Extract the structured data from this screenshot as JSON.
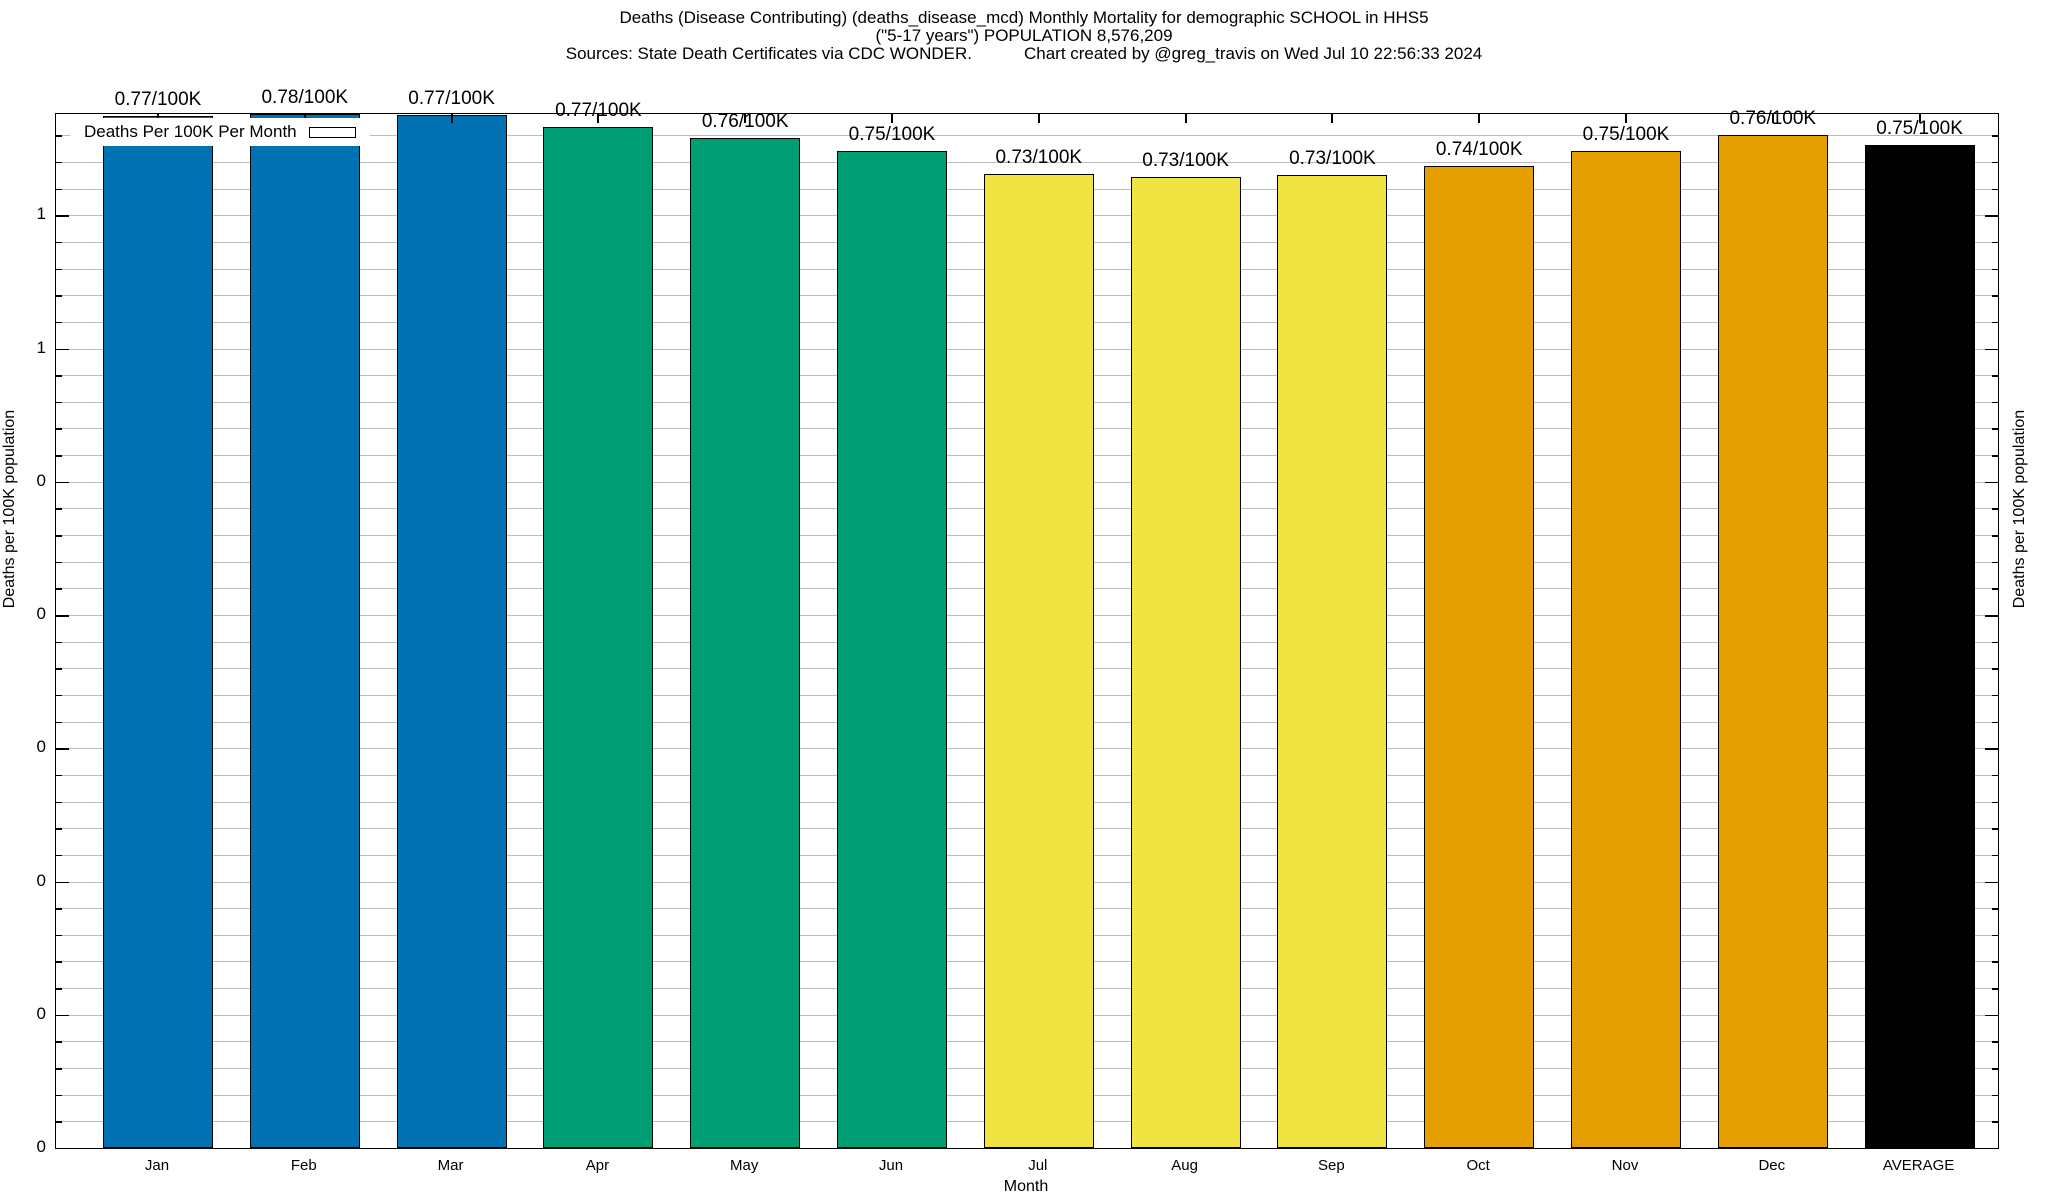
{
  "title": {
    "line1": "Deaths (Disease Contributing) (deaths_disease_mcd) Monthly Mortality for demographic SCHOOL in HHS5",
    "line2": "(\"5-17 years\") POPULATION 8,576,209",
    "sources": "Sources: State Death Certificates via CDC WONDER.",
    "credit": "Chart created by @greg_travis on Wed Jul 10 22:56:33 2024"
  },
  "legend": {
    "label": "Deaths Per 100K Per Month"
  },
  "axes": {
    "y_left_label": "Deaths per 100K population",
    "y_right_label": "Deaths per 100K population",
    "x_label": "Month"
  },
  "colors": {
    "blue": "#0072B2",
    "green": "#009E73",
    "yellow": "#F0E442",
    "orange": "#E69F00",
    "black": "#000000",
    "grid": "#bcbcbc"
  },
  "chart_data": {
    "type": "bar",
    "title": "Deaths (Disease Contributing) (deaths_disease_mcd) Monthly Mortality for demographic SCHOOL in HHS5 (\"5-17 years\") POPULATION 8,576,209",
    "xlabel": "Month",
    "ylabel": "Deaths per 100K population",
    "categories": [
      "Jan",
      "Feb",
      "Mar",
      "Apr",
      "May",
      "Jun",
      "Jul",
      "Aug",
      "Sep",
      "Oct",
      "Nov",
      "Dec",
      "AVERAGE"
    ],
    "values": [
      0.77,
      0.78,
      0.77,
      0.77,
      0.76,
      0.75,
      0.73,
      0.73,
      0.73,
      0.74,
      0.75,
      0.76,
      0.75
    ],
    "bar_labels": [
      "0.77/100K",
      "0.78/100K",
      "0.77/100K",
      "0.77/100K",
      "0.76/100K",
      "0.75/100K",
      "0.73/100K",
      "0.73/100K",
      "0.73/100K",
      "0.74/100K",
      "0.75/100K",
      "0.76/100K",
      "0.75/100K"
    ],
    "bar_colors": [
      "#0072B2",
      "#0072B2",
      "#0072B2",
      "#009E73",
      "#009E73",
      "#009E73",
      "#F0E442",
      "#F0E442",
      "#F0E442",
      "#E69F00",
      "#E69F00",
      "#E69F00",
      "#000000"
    ],
    "bar_fractions": [
      0.9981,
      1.0,
      0.9987,
      0.9871,
      0.9768,
      0.9639,
      0.942,
      0.9394,
      0.9407,
      0.9497,
      0.9639,
      0.9794,
      0.9697
    ],
    "ylim": [
      0,
      0.776
    ],
    "y_major_tick_values": [
      0.7,
      0.6,
      0.5,
      0.4,
      0.3,
      0.2,
      0.1,
      0.0
    ],
    "y_major_tick_labels": [
      "1",
      "1",
      "0",
      "0",
      "0",
      "0",
      "0",
      "0"
    ],
    "y_minor_step": 0.02,
    "grid": true,
    "legend_entries": [
      "Deaths Per 100K Per Month"
    ],
    "legend_position": "top-left"
  }
}
